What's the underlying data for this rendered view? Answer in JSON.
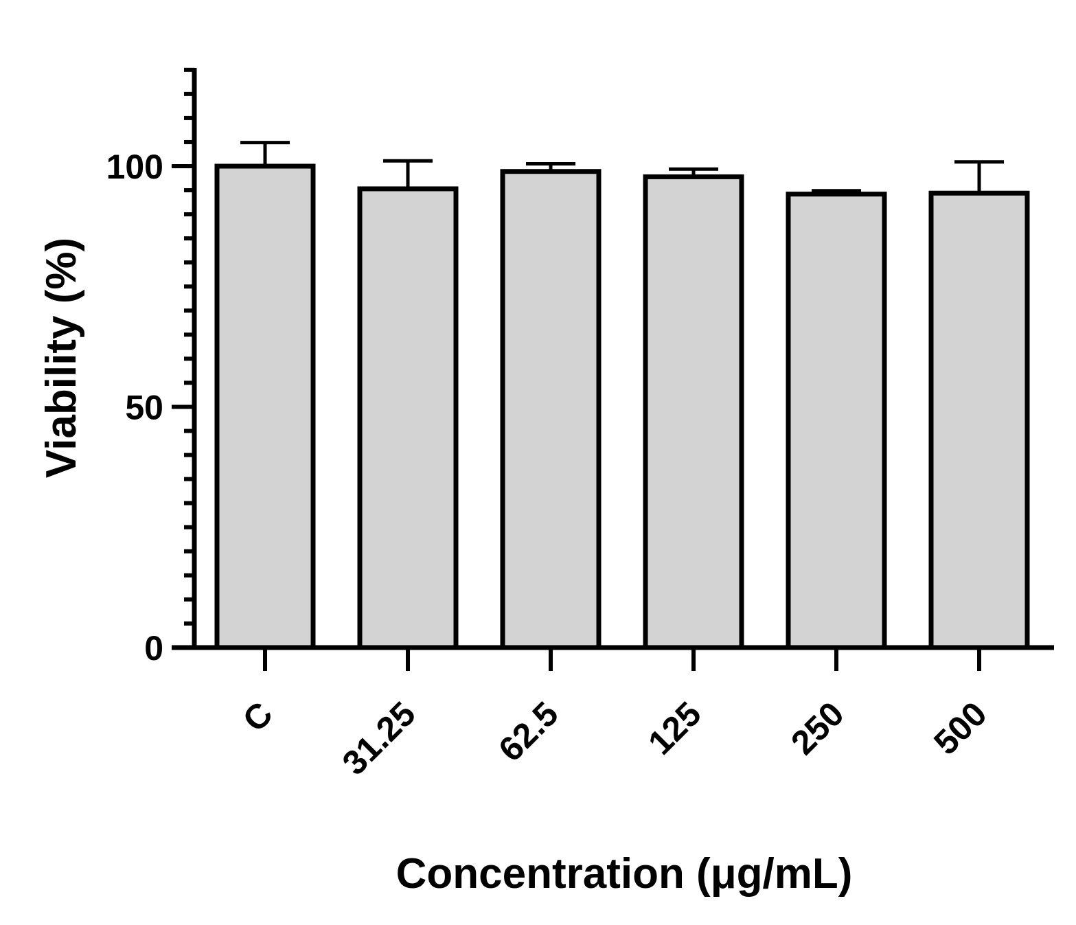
{
  "chart_data": {
    "type": "bar",
    "title": "",
    "xlabel": "Concentration (μg/mL)",
    "ylabel": "Viability (%)",
    "categories": [
      "C",
      "31.25",
      "62.5",
      "125",
      "250",
      "500"
    ],
    "series": [
      {
        "values": [
          100,
          95.3,
          98.9,
          97.8,
          94.2,
          94.4
        ],
        "error_upper": [
          4.9,
          5.8,
          1.6,
          1.6,
          0.7,
          6.5
        ]
      }
    ],
    "ylim": [
      0,
      120
    ],
    "yticks": [
      0,
      50,
      100
    ],
    "y_minor_tick_step": 5,
    "grid": false,
    "legend": "none",
    "colors": {
      "bar_fill": "#d3d3d3",
      "bar_stroke": "#000000"
    }
  }
}
